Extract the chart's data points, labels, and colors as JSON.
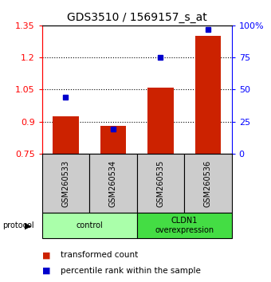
{
  "title": "GDS3510 / 1569157_s_at",
  "samples": [
    "GSM260533",
    "GSM260534",
    "GSM260535",
    "GSM260536"
  ],
  "red_values": [
    0.925,
    0.88,
    1.06,
    1.3
  ],
  "blue_values_pct": [
    44,
    19,
    75,
    97
  ],
  "ylim_left": [
    0.75,
    1.35
  ],
  "ylim_right": [
    0,
    100
  ],
  "left_ticks": [
    0.75,
    0.9,
    1.05,
    1.2,
    1.35
  ],
  "right_ticks": [
    0,
    25,
    50,
    75,
    100
  ],
  "right_tick_labels": [
    "0",
    "25",
    "50",
    "75",
    "100%"
  ],
  "groups": [
    {
      "label": "control",
      "samples": [
        0,
        1
      ],
      "color": "#aaffaa"
    },
    {
      "label": "CLDN1\noverexpression",
      "samples": [
        2,
        3
      ],
      "color": "#44dd44"
    }
  ],
  "bar_color": "#cc2200",
  "dot_color": "#0000cc",
  "sample_box_color": "#cccccc",
  "bar_width": 0.55,
  "baseline": 0.75,
  "title_fontsize": 10,
  "tick_fontsize": 8,
  "label_fontsize": 7,
  "legend_fontsize": 7.5
}
